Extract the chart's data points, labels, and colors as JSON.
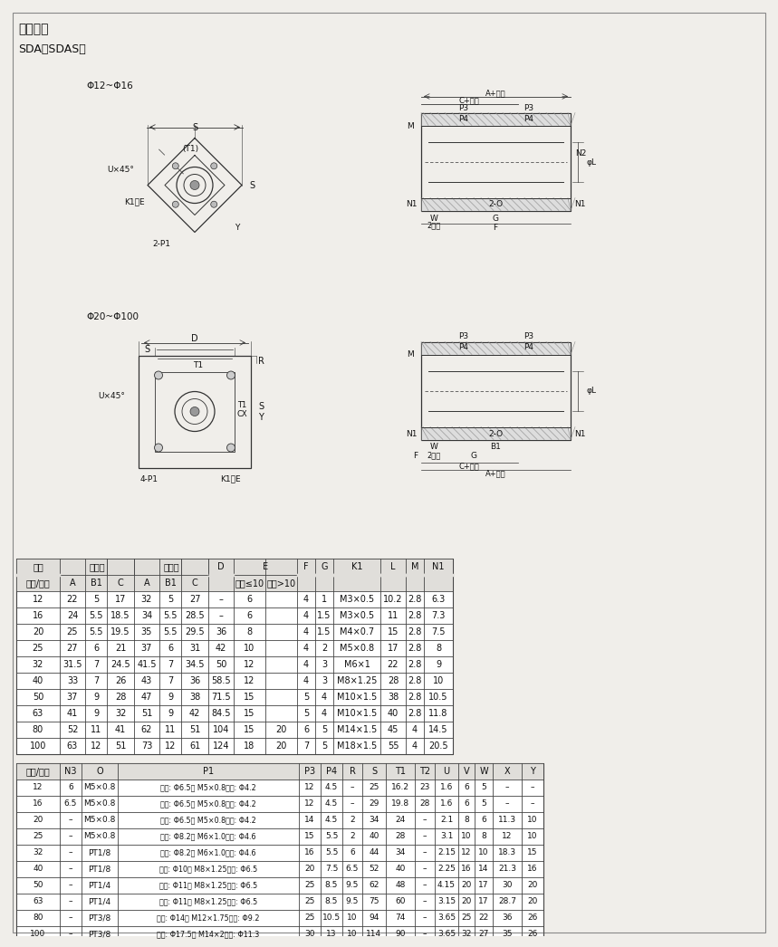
{
  "title1": "安装尺寸",
  "title2": "SDA、SDAS型",
  "diagram1_label": "Φ12~Φ16",
  "diagram2_label": "Φ20~Φ100",
  "table1_data": [
    [
      "12",
      "22",
      "5",
      "17",
      "32",
      "5",
      "27",
      "–",
      "6",
      "",
      "4",
      "1",
      "M3×0.5",
      "10.2",
      "2.8",
      "6.3"
    ],
    [
      "16",
      "24",
      "5.5",
      "18.5",
      "34",
      "5.5",
      "28.5",
      "–",
      "6",
      "",
      "4",
      "1.5",
      "M3×0.5",
      "11",
      "2.8",
      "7.3"
    ],
    [
      "20",
      "25",
      "5.5",
      "19.5",
      "35",
      "5.5",
      "29.5",
      "36",
      "8",
      "",
      "4",
      "1.5",
      "M4×0.7",
      "15",
      "2.8",
      "7.5"
    ],
    [
      "25",
      "27",
      "6",
      "21",
      "37",
      "6",
      "31",
      "42",
      "10",
      "",
      "4",
      "2",
      "M5×0.8",
      "17",
      "2.8",
      "8"
    ],
    [
      "32",
      "31.5",
      "7",
      "24.5",
      "41.5",
      "7",
      "34.5",
      "50",
      "12",
      "",
      "4",
      "3",
      "M6×1",
      "22",
      "2.8",
      "9"
    ],
    [
      "40",
      "33",
      "7",
      "26",
      "43",
      "7",
      "36",
      "58.5",
      "12",
      "",
      "4",
      "3",
      "M8×1.25",
      "28",
      "2.8",
      "10"
    ],
    [
      "50",
      "37",
      "9",
      "28",
      "47",
      "9",
      "38",
      "71.5",
      "15",
      "",
      "5",
      "4",
      "M10×1.5",
      "38",
      "2.8",
      "10.5"
    ],
    [
      "63",
      "41",
      "9",
      "32",
      "51",
      "9",
      "42",
      "84.5",
      "15",
      "",
      "5",
      "4",
      "M10×1.5",
      "40",
      "2.8",
      "11.8"
    ],
    [
      "80",
      "52",
      "11",
      "41",
      "62",
      "11",
      "51",
      "104",
      "15",
      "20",
      "6",
      "5",
      "M14×1.5",
      "45",
      "4",
      "14.5"
    ],
    [
      "100",
      "63",
      "12",
      "51",
      "73",
      "12",
      "61",
      "124",
      "18",
      "20",
      "7",
      "5",
      "M18×1.5",
      "55",
      "4",
      "20.5"
    ]
  ],
  "table2_data": [
    [
      "12",
      "6",
      "M5×0.8",
      "双边: Φ6.5牙 M5×0.8通孔: Φ4.2",
      "12",
      "4.5",
      "–",
      "25",
      "16.2",
      "23",
      "1.6",
      "6",
      "5",
      "–",
      "–"
    ],
    [
      "16",
      "6.5",
      "M5×0.8",
      "双边: Φ6.5牙 M5×0.8通孔: Φ4.2",
      "12",
      "4.5",
      "–",
      "29",
      "19.8",
      "28",
      "1.6",
      "6",
      "5",
      "–",
      "–"
    ],
    [
      "20",
      "–",
      "M5×0.8",
      "双边: Φ6.5牙 M5×0.8通孔: Φ4.2",
      "14",
      "4.5",
      "2",
      "34",
      "24",
      "–",
      "2.1",
      "8",
      "6",
      "11.3",
      "10"
    ],
    [
      "25",
      "–",
      "M5×0.8",
      "双边: Φ8.2牙 M6×1.0通孔: Φ4.6",
      "15",
      "5.5",
      "2",
      "40",
      "28",
      "–",
      "3.1",
      "10",
      "8",
      "12",
      "10"
    ],
    [
      "32",
      "–",
      "PT1/8",
      "双边: Φ8.2牙 M6×1.0通孔: Φ4.6",
      "16",
      "5.5",
      "6",
      "44",
      "34",
      "–",
      "2.15",
      "12",
      "10",
      "18.3",
      "15"
    ],
    [
      "40",
      "–",
      "PT1/8",
      "双边: Φ10牙 M8×1.25通孔: Φ6.5",
      "20",
      "7.5",
      "6.5",
      "52",
      "40",
      "–",
      "2.25",
      "16",
      "14",
      "21.3",
      "16"
    ],
    [
      "50",
      "–",
      "PT1/4",
      "双边: Φ11牙 M8×1.25通孔: Φ6.5",
      "25",
      "8.5",
      "9.5",
      "62",
      "48",
      "–",
      "4.15",
      "20",
      "17",
      "30",
      "20"
    ],
    [
      "63",
      "–",
      "PT1/4",
      "双边: Φ11牙 M8×1.25通孔: Φ6.5",
      "25",
      "8.5",
      "9.5",
      "75",
      "60",
      "–",
      "3.15",
      "20",
      "17",
      "28.7",
      "20"
    ],
    [
      "80",
      "–",
      "PT3/8",
      "双边: Φ14牙 M12×1.75通孔: Φ9.2",
      "25",
      "10.5",
      "10",
      "94",
      "74",
      "–",
      "3.65",
      "25",
      "22",
      "36",
      "26"
    ],
    [
      "100",
      "–",
      "PT3/8",
      "双边: Φ17.5牙 M14×2通孔: Φ11.3",
      "30",
      "13",
      "10",
      "114",
      "90",
      "–",
      "3.65",
      "32",
      "27",
      "35",
      "26"
    ]
  ],
  "bg_color": "#f0eeea",
  "table_bg": "#ffffff",
  "header_bg": "#e0deda",
  "line_color": "#444444",
  "text_color": "#111111"
}
